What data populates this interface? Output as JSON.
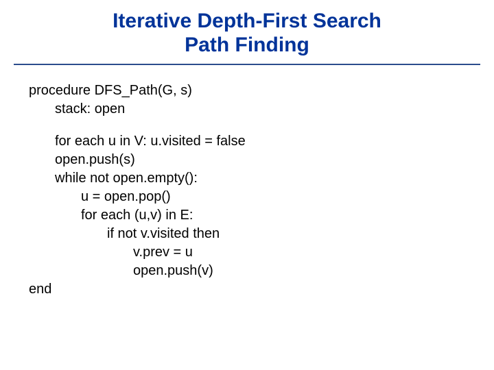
{
  "colors": {
    "title": "#003399",
    "rule": "#2b4c8c",
    "body_text": "#000000",
    "background": "#ffffff"
  },
  "title": {
    "line1": "Iterative Depth-First Search",
    "line2": "Path Finding"
  },
  "code": {
    "l0": "procedure DFS_Path(G, s)",
    "l1": "stack: open",
    "l2": "for each u in V: u.visited = false",
    "l3": "open.push(s)",
    "l4": "while not open.empty():",
    "l5": "u = open.pop()",
    "l6": "for each (u,v) in E:",
    "l7": "if not v.visited then",
    "l8": "v.prev = u",
    "l9": "open.push(v)",
    "l10": "end"
  }
}
